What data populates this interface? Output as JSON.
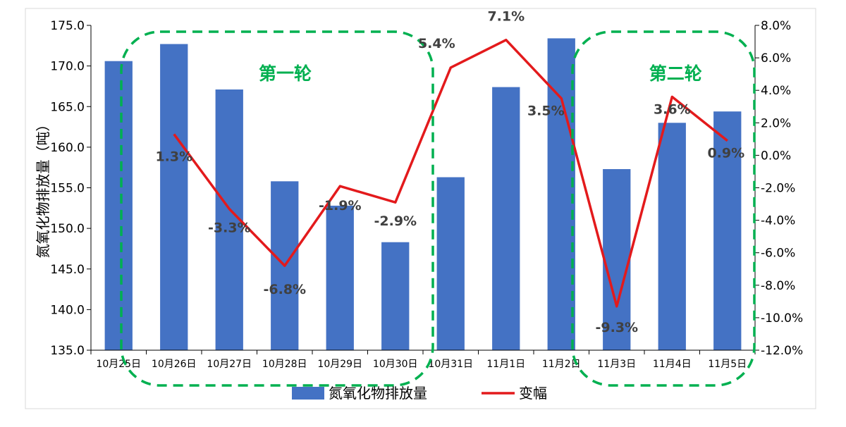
{
  "chart_data": {
    "type": "bar",
    "categories": [
      "10月25日",
      "10月26日",
      "10月27日",
      "10月28日",
      "10月29日",
      "10月30日",
      "10月31日",
      "11月1日",
      "11月2日",
      "11月3日",
      "11月4日",
      "11月5日"
    ],
    "ylabel": "氮氧化物排放量（吨）",
    "ylim": [
      135.0,
      175.0
    ],
    "y_ticks": [
      "175.0",
      "170.0",
      "165.0",
      "160.0",
      "155.0",
      "150.0",
      "145.0",
      "140.0",
      "135.0"
    ],
    "y2lim": [
      -12.0,
      8.0
    ],
    "y2_ticks": [
      "8.0%",
      "6.0%",
      "4.0%",
      "2.0%",
      "0.0%",
      "-2.0%",
      "-4.0%",
      "-6.0%",
      "-8.0%",
      "-10.0%",
      "-12.0%"
    ],
    "grid": false,
    "legend_position": "bottom",
    "colors": {
      "bar": "#4472C4",
      "line": "#E31A1C",
      "annotation": "#00B050"
    },
    "series": [
      {
        "name": "氮氧化物排放量",
        "type": "bar",
        "axis": "left",
        "values": [
          170.6,
          172.7,
          167.1,
          155.8,
          152.8,
          148.3,
          156.3,
          167.4,
          173.4,
          157.3,
          163.0,
          164.4
        ]
      },
      {
        "name": "变幅",
        "type": "line",
        "axis": "right",
        "values": [
          null,
          1.3,
          -3.3,
          -6.8,
          -1.9,
          -2.9,
          5.4,
          7.1,
          3.5,
          -9.3,
          3.6,
          0.9
        ],
        "labels": [
          "",
          "1.3%",
          "-3.3%",
          "-6.8%",
          "-1.9%",
          "-2.9%",
          "5.4%",
          "7.1%",
          "3.5%",
          "-9.3%",
          "3.6%",
          "0.9%"
        ]
      }
    ],
    "annotations": [
      {
        "text": "第一轮",
        "from": "10月25日",
        "to": "10月30日"
      },
      {
        "text": "第二轮",
        "from": "11月3日",
        "to": "11月5日"
      }
    ]
  }
}
